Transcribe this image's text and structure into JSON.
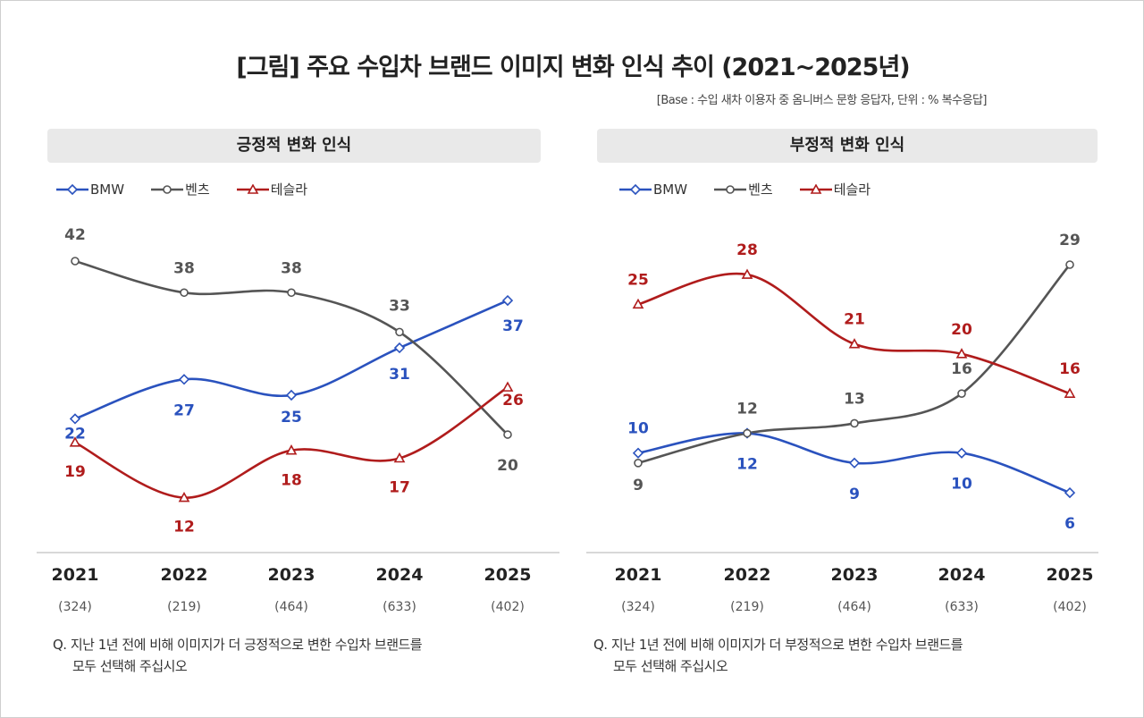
{
  "title": "[그림] 주요 수입차 브랜드 이미지 변화 인식 추이 (2021~2025년)",
  "base_note": "[Base : 수입 새차 이용자 중 옴니버스 문항 응답자, 단위 : % 복수응답]",
  "colors": {
    "BMW": "#2a52be",
    "벤츠": "#555555",
    "테슬라": "#b01c1c"
  },
  "markers": {
    "BMW": "diamond",
    "벤츠": "circle",
    "테슬라": "triangle"
  },
  "chart_data": [
    {
      "type": "line",
      "title": "긍정적 변화 인식",
      "categories": [
        "2021",
        "2022",
        "2023",
        "2024",
        "2025"
      ],
      "sample_sizes": [
        "(324)",
        "(219)",
        "(464)",
        "(633)",
        "(402)"
      ],
      "legend": "top-left",
      "grid": false,
      "series": [
        {
          "name": "BMW",
          "values": [
            22,
            27,
            25,
            31,
            37
          ]
        },
        {
          "name": "벤츠",
          "values": [
            42,
            38,
            38,
            33,
            20
          ]
        },
        {
          "name": "테슬라",
          "values": [
            19,
            12,
            18,
            17,
            26
          ]
        }
      ],
      "question": [
        "Q. 지난 1년 전에 비해 이미지가 더 긍정적으로 변한 수입차 브랜드를",
        "모두 선택해 주십시오"
      ]
    },
    {
      "type": "line",
      "title": "부정적 변화 인식",
      "categories": [
        "2021",
        "2022",
        "2023",
        "2024",
        "2025"
      ],
      "sample_sizes": [
        "(324)",
        "(219)",
        "(464)",
        "(633)",
        "(402)"
      ],
      "legend": "top-left",
      "grid": false,
      "series": [
        {
          "name": "BMW",
          "values": [
            10,
            12,
            9,
            10,
            6
          ]
        },
        {
          "name": "벤츠",
          "values": [
            9,
            12,
            13,
            16,
            29
          ]
        },
        {
          "name": "테슬라",
          "values": [
            25,
            28,
            21,
            20,
            16
          ]
        }
      ],
      "question": [
        "Q. 지난 1년 전에 비해 이미지가 더 부정적으로 변한 수입차 브랜드를",
        "모두 선택해 주십시오"
      ]
    }
  ]
}
